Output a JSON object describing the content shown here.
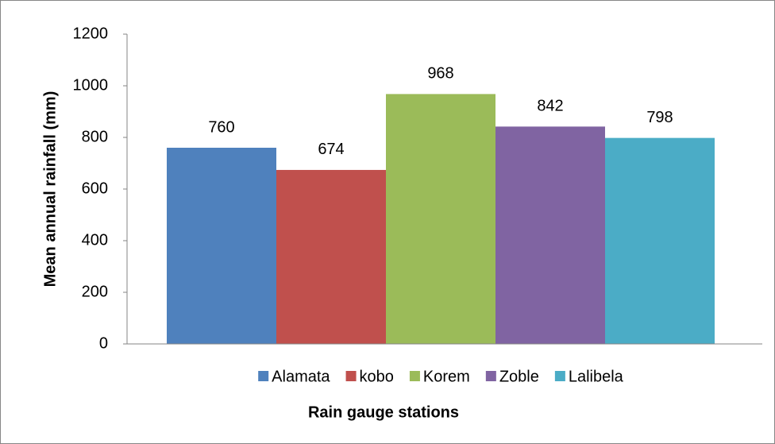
{
  "chart_data": {
    "type": "bar",
    "y_label": "Mean annual rainfall (mm)",
    "x_label": "Rain gauge stations",
    "categories": [
      null
    ],
    "series": [
      {
        "name": "Alamata",
        "color": "#4f81bd",
        "values": [
          760
        ]
      },
      {
        "name": "kobo",
        "color": "#c0504d",
        "values": [
          674
        ]
      },
      {
        "name": "Korem",
        "color": "#9bbb59",
        "values": [
          968
        ]
      },
      {
        "name": "Zoble",
        "color": "#8064a2",
        "values": [
          842
        ]
      },
      {
        "name": "Lalibela",
        "color": "#4bacc6",
        "values": [
          798
        ]
      }
    ],
    "ylim": [
      0,
      1200
    ],
    "yticks": [
      0,
      200,
      400,
      600,
      800,
      1000,
      1200
    ],
    "grid": false,
    "legend": "bottom",
    "data_labels": true
  }
}
